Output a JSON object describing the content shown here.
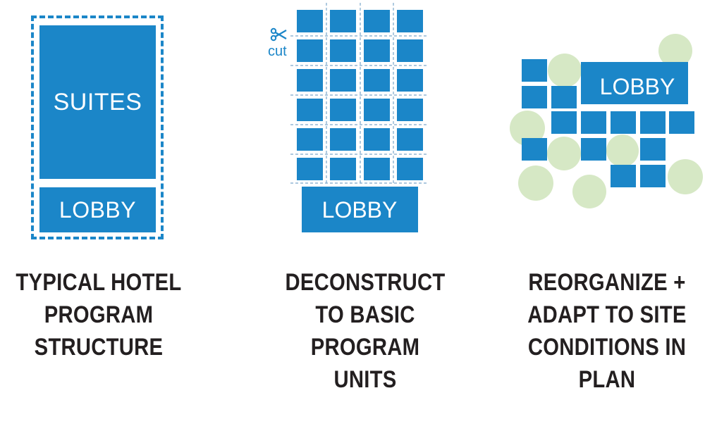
{
  "colors": {
    "unit_blue": "#1b86c8",
    "tree_green": "#d6e8c5",
    "text": "#231f20",
    "cut_line": "#7aa8cc"
  },
  "panel1": {
    "suites_label": "SUITES",
    "lobby_label": "LOBBY",
    "caption": [
      "TYPICAL HOTEL",
      "PROGRAM",
      "STRUCTURE"
    ]
  },
  "panel2": {
    "cut_label": "cut",
    "cut_icon": "scissors-icon",
    "lobby_label": "LOBBY",
    "caption": [
      "DECONSTRUCT",
      "TO BASIC",
      "PROGRAM",
      "UNITS"
    ]
  },
  "panel3": {
    "lobby_label": "LOBBY",
    "caption": [
      "REORGANIZE +",
      "ADAPT TO SITE",
      "CONDITIONS IN",
      "PLAN"
    ]
  }
}
